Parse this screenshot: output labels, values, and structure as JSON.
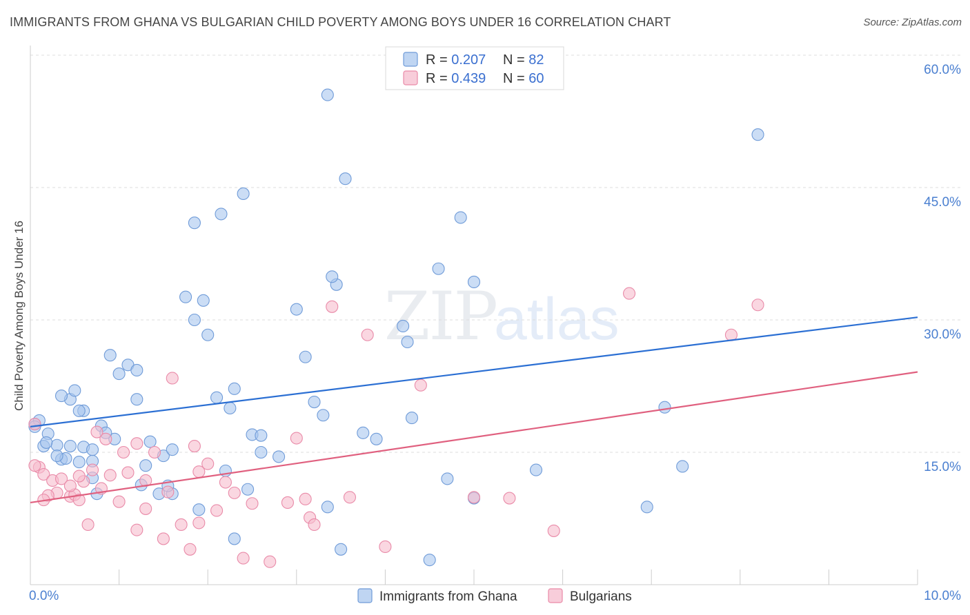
{
  "chart_data": {
    "type": "scatter",
    "title": "IMMIGRANTS FROM GHANA VS BULGARIAN CHILD POVERTY AMONG BOYS UNDER 16 CORRELATION CHART",
    "source": "Source: ZipAtlas.com",
    "watermark": "ZIPatlas",
    "xlabel": "",
    "ylabel": "Child Poverty Among Boys Under 16",
    "xlim": [
      0,
      10
    ],
    "ylim": [
      0,
      60
    ],
    "x_tick_labels": [
      "0.0%",
      "10.0%"
    ],
    "y_ticks": [
      15,
      30,
      45,
      60
    ],
    "y_tick_labels": [
      "15.0%",
      "30.0%",
      "45.0%",
      "60.0%"
    ],
    "legend": [
      {
        "r_label": "R = ",
        "r_value": "0.207",
        "n_label": "N = ",
        "n_value": "82"
      },
      {
        "r_label": "R = ",
        "r_value": "0.439",
        "n_label": "N = ",
        "n_value": "60"
      }
    ],
    "series": [
      {
        "name": "Immigrants from Ghana",
        "color": "#a9c7ee",
        "stroke": "#6f9bd8",
        "line_color": "#2b6fd3",
        "trend": [
          [
            0,
            17.9
          ],
          [
            10,
            30.3
          ]
        ],
        "points": [
          [
            0.05,
            18.2
          ],
          [
            0.1,
            18.6
          ],
          [
            0.2,
            17.1
          ],
          [
            0.15,
            15.7
          ],
          [
            0.3,
            15.8
          ],
          [
            0.35,
            14.2
          ],
          [
            0.4,
            14.3
          ],
          [
            0.45,
            21.0
          ],
          [
            0.5,
            22.0
          ],
          [
            0.55,
            13.9
          ],
          [
            0.6,
            15.6
          ],
          [
            0.7,
            12.1
          ],
          [
            0.8,
            18.0
          ],
          [
            0.9,
            26.0
          ],
          [
            1.0,
            23.9
          ],
          [
            1.1,
            24.9
          ],
          [
            1.2,
            24.3
          ],
          [
            1.3,
            13.5
          ],
          [
            1.5,
            14.6
          ],
          [
            1.6,
            15.3
          ],
          [
            1.75,
            32.6
          ],
          [
            1.85,
            30.0
          ],
          [
            2.0,
            28.3
          ],
          [
            2.2,
            12.9
          ],
          [
            2.3,
            5.2
          ],
          [
            2.5,
            17.0
          ],
          [
            2.6,
            15.0
          ],
          [
            2.8,
            14.5
          ],
          [
            3.0,
            31.2
          ],
          [
            3.1,
            25.8
          ],
          [
            3.3,
            19.2
          ],
          [
            3.5,
            4.0
          ],
          [
            3.75,
            17.2
          ],
          [
            3.9,
            16.5
          ],
          [
            4.2,
            29.3
          ],
          [
            4.5,
            2.8
          ],
          [
            4.3,
            18.9
          ],
          [
            5.7,
            13.0
          ],
          [
            0.35,
            21.4
          ],
          [
            0.6,
            19.7
          ],
          [
            0.7,
            14.0
          ],
          [
            0.95,
            16.5
          ],
          [
            1.2,
            21.0
          ],
          [
            1.6,
            10.3
          ],
          [
            1.9,
            8.5
          ],
          [
            2.3,
            22.2
          ],
          [
            2.6,
            16.9
          ],
          [
            3.2,
            20.7
          ],
          [
            3.35,
            8.8
          ],
          [
            4.7,
            12.0
          ],
          [
            4.25,
            27.5
          ],
          [
            3.45,
            34.0
          ],
          [
            1.85,
            41.0
          ],
          [
            2.15,
            42.0
          ],
          [
            2.4,
            44.3
          ],
          [
            3.55,
            46.0
          ],
          [
            4.6,
            35.8
          ],
          [
            4.85,
            41.6
          ],
          [
            5.0,
            34.3
          ],
          [
            3.35,
            55.5
          ],
          [
            8.2,
            51.0
          ],
          [
            7.15,
            20.1
          ],
          [
            7.35,
            13.4
          ],
          [
            6.95,
            8.8
          ],
          [
            5.0,
            9.8
          ],
          [
            3.4,
            34.9
          ],
          [
            2.1,
            21.2
          ],
          [
            0.55,
            19.7
          ],
          [
            1.95,
            32.2
          ],
          [
            1.45,
            10.3
          ],
          [
            0.7,
            15.3
          ],
          [
            1.35,
            16.2
          ],
          [
            0.3,
            14.6
          ],
          [
            0.05,
            17.9
          ],
          [
            0.18,
            16.1
          ],
          [
            0.85,
            17.2
          ],
          [
            1.25,
            11.3
          ],
          [
            0.45,
            15.7
          ],
          [
            2.45,
            10.8
          ],
          [
            1.55,
            11.2
          ],
          [
            0.75,
            10.3
          ],
          [
            2.25,
            20.0
          ]
        ]
      },
      {
        "name": "Bulgarians",
        "color": "#f6bccd",
        "stroke": "#e98aa8",
        "line_color": "#e0607f",
        "trend": [
          [
            0,
            9.3
          ],
          [
            10,
            24.1
          ]
        ],
        "points": [
          [
            0.05,
            18.2
          ],
          [
            0.1,
            13.3
          ],
          [
            0.15,
            12.5
          ],
          [
            0.25,
            11.8
          ],
          [
            0.3,
            10.4
          ],
          [
            0.35,
            12.0
          ],
          [
            0.45,
            10.0
          ],
          [
            0.5,
            10.2
          ],
          [
            0.55,
            9.6
          ],
          [
            0.6,
            11.7
          ],
          [
            0.7,
            13.0
          ],
          [
            0.8,
            10.9
          ],
          [
            0.9,
            12.4
          ],
          [
            1.0,
            9.4
          ],
          [
            1.1,
            12.7
          ],
          [
            1.2,
            6.2
          ],
          [
            1.3,
            8.6
          ],
          [
            1.4,
            15.0
          ],
          [
            1.5,
            5.2
          ],
          [
            1.6,
            23.4
          ],
          [
            1.7,
            6.8
          ],
          [
            1.8,
            4.0
          ],
          [
            1.85,
            15.7
          ],
          [
            1.9,
            7.0
          ],
          [
            2.0,
            13.7
          ],
          [
            2.1,
            8.4
          ],
          [
            2.2,
            11.6
          ],
          [
            2.3,
            10.4
          ],
          [
            2.4,
            3.0
          ],
          [
            2.5,
            9.2
          ],
          [
            2.7,
            2.6
          ],
          [
            2.9,
            9.3
          ],
          [
            3.0,
            16.6
          ],
          [
            3.1,
            9.7
          ],
          [
            3.15,
            7.6
          ],
          [
            3.2,
            6.8
          ],
          [
            3.4,
            31.5
          ],
          [
            3.6,
            9.9
          ],
          [
            3.8,
            28.3
          ],
          [
            4.0,
            4.3
          ],
          [
            4.4,
            22.6
          ],
          [
            5.0,
            9.9
          ],
          [
            5.4,
            9.8
          ],
          [
            5.9,
            6.1
          ],
          [
            6.75,
            33.0
          ],
          [
            7.9,
            28.3
          ],
          [
            8.2,
            31.7
          ],
          [
            0.2,
            10.1
          ],
          [
            0.45,
            11.2
          ],
          [
            0.65,
            6.8
          ],
          [
            0.85,
            16.5
          ],
          [
            1.05,
            15.0
          ],
          [
            1.3,
            11.8
          ],
          [
            1.55,
            10.5
          ],
          [
            1.9,
            12.8
          ],
          [
            0.75,
            17.3
          ],
          [
            1.2,
            16.0
          ],
          [
            0.15,
            9.6
          ],
          [
            0.55,
            12.3
          ],
          [
            0.05,
            13.5
          ]
        ]
      }
    ]
  }
}
